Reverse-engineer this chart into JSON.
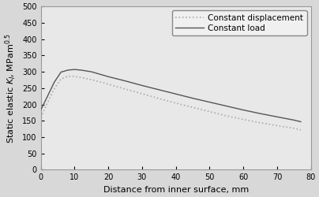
{
  "xlabel": "Distance from inner surface, mm",
  "xlim": [
    0,
    80
  ],
  "ylim": [
    0,
    500
  ],
  "xticks": [
    0,
    10,
    20,
    30,
    40,
    50,
    60,
    70,
    80
  ],
  "yticks": [
    0,
    50,
    100,
    150,
    200,
    250,
    300,
    350,
    400,
    450,
    500
  ],
  "constant_load_x": [
    0,
    2,
    4,
    6,
    8,
    10,
    12,
    15,
    20,
    25,
    30,
    35,
    40,
    45,
    50,
    55,
    60,
    65,
    70,
    75,
    77
  ],
  "constant_load_y": [
    183,
    225,
    268,
    299,
    305,
    307,
    305,
    300,
    285,
    272,
    258,
    245,
    232,
    219,
    207,
    195,
    183,
    172,
    162,
    152,
    147
  ],
  "constant_disp_x": [
    0,
    2,
    4,
    6,
    8,
    10,
    12,
    15,
    20,
    25,
    30,
    35,
    40,
    45,
    50,
    55,
    60,
    65,
    70,
    75,
    77
  ],
  "constant_disp_y": [
    160,
    205,
    248,
    278,
    286,
    286,
    282,
    276,
    262,
    247,
    233,
    218,
    204,
    191,
    178,
    165,
    154,
    144,
    135,
    127,
    122
  ],
  "load_color": "#555555",
  "disp_color": "#aaaaaa",
  "load_lw": 1.0,
  "disp_lw": 1.2,
  "legend_labels_ordered": [
    "Constant displacement",
    "Constant load"
  ],
  "background_color": "#d8d8d8",
  "plot_bg_color": "#e8e8e8",
  "spine_color": "#999999",
  "tick_fontsize": 7,
  "label_fontsize": 8,
  "legend_fontsize": 7.5
}
